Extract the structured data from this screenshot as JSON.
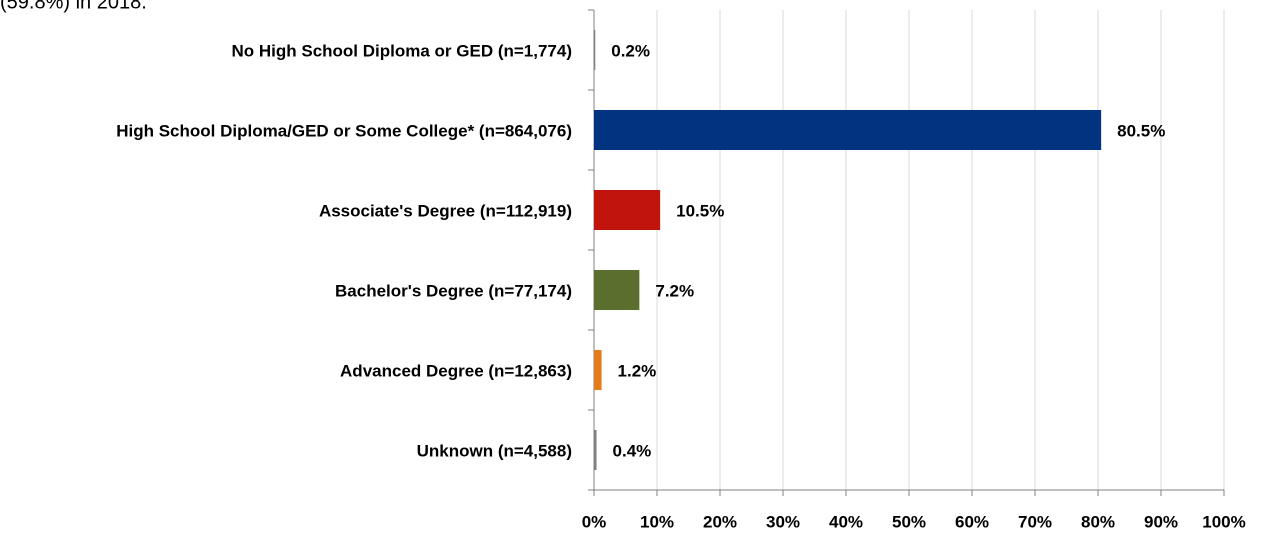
{
  "chart_data": {
    "type": "bar",
    "orientation": "horizontal",
    "annotation": "(59.8%) in 2018.",
    "categories": [
      "No High School Diploma or GED (n=1,774)",
      "High School Diploma/GED or Some College* (n=864,076)",
      "Associate's Degree (n=112,919)",
      "Bachelor's Degree (n=77,174)",
      "Advanced Degree (n=12,863)",
      "Unknown (n=4,588)"
    ],
    "values": [
      0.2,
      80.5,
      10.5,
      7.2,
      1.2,
      0.4
    ],
    "value_labels": [
      "0.2%",
      "80.5%",
      "10.5%",
      "7.2%",
      "1.2%",
      "0.4%"
    ],
    "colors": [
      "#7f7f7f",
      "#003380",
      "#c0140c",
      "#5a6e2e",
      "#e57c1a",
      "#7f7f7f"
    ],
    "xlim": [
      0,
      100
    ],
    "xticks": [
      {
        "value": 0,
        "label": "0%"
      },
      {
        "value": 10,
        "label": "10%"
      },
      {
        "value": 20,
        "label": "20%"
      },
      {
        "value": 30,
        "label": "30%"
      },
      {
        "value": 40,
        "label": "40%"
      },
      {
        "value": 50,
        "label": "50%"
      },
      {
        "value": 60,
        "label": "60%"
      },
      {
        "value": 70,
        "label": "70%"
      },
      {
        "value": 80,
        "label": "80%"
      },
      {
        "value": 90,
        "label": "90%"
      },
      {
        "value": 100,
        "label": "100%"
      }
    ],
    "grid": true
  }
}
